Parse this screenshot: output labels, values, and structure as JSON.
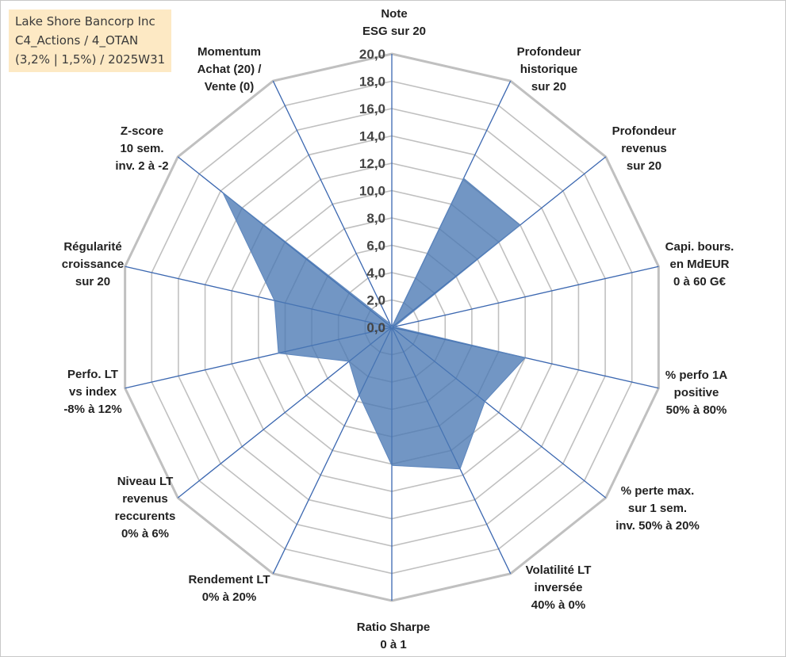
{
  "title": {
    "line1": "Lake Shore Bancorp Inc",
    "line2": "C4_Actions / 4_OTAN",
    "line3": "(3,2% | 1,5%) / 2025W31"
  },
  "colors": {
    "fill": "#4a79b3",
    "axis": "#3b67b0",
    "grid": "#c0c0c0",
    "title_bg": "#fde9c4"
  },
  "chart_data": {
    "type": "radar",
    "rmin": 0,
    "rmax": 20,
    "ticks": [
      "0,0",
      "2,0",
      "4,0",
      "6,0",
      "8,0",
      "10,0",
      "12,0",
      "14,0",
      "16,0",
      "18,0",
      "20,0"
    ],
    "tick_values": [
      0,
      2,
      4,
      6,
      8,
      10,
      12,
      14,
      16,
      18,
      20
    ],
    "grid": true,
    "axes": [
      {
        "label": [
          "Note",
          "ESG sur 20"
        ],
        "value": 0
      },
      {
        "label": [
          "Profondeur",
          "historique",
          "sur 20"
        ],
        "value": 12.1
      },
      {
        "label": [
          "Profondeur",
          "revenus",
          "sur 20"
        ],
        "value": 12.0
      },
      {
        "label": [
          "Capi. bours.",
          "en MdEUR",
          "0 à 60 G€"
        ],
        "value": 0.2
      },
      {
        "label": [
          "% perfo 1A",
          "positive",
          "50% à 80%"
        ],
        "value": 10.0
      },
      {
        "label": [
          "% perte max.",
          "sur 1 sem.",
          "inv. 50% à 20%"
        ],
        "value": 8.7
      },
      {
        "label": [
          "Volatilité LT",
          "inversée",
          "40% à 0%"
        ],
        "value": 11.5
      },
      {
        "label": [
          "Ratio Sharpe",
          "0 à 1"
        ],
        "value": 10.1
      },
      {
        "label": [
          "Rendement LT",
          "0% à 20%"
        ],
        "value": 5.5
      },
      {
        "label": [
          "Niveau LT",
          "revenus",
          "reccurents",
          "0% à 6%"
        ],
        "value": 4.0
      },
      {
        "label": [
          "Perfo. LT",
          "vs index",
          "-8% à 12%"
        ],
        "value": 8.5
      },
      {
        "label": [
          "Régularité",
          "croissance",
          "sur 20"
        ],
        "value": 8.8
      },
      {
        "label": [
          "Z-score",
          "10 sem.",
          "inv. 2 à -2"
        ],
        "value": 15.8
      },
      {
        "label": [
          "Momentum",
          "Achat (20) /",
          "Vente (0)"
        ],
        "value": 0.3
      }
    ]
  }
}
